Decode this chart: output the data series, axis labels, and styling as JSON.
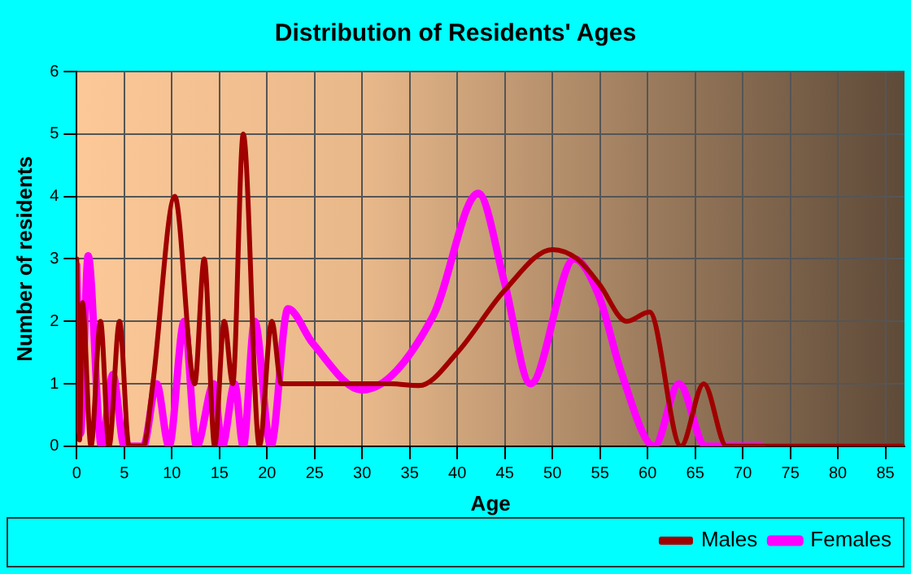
{
  "chart_data": {
    "type": "line",
    "title": "Distribution of Residents' Ages",
    "xlabel": "Age",
    "ylabel": "Number of residents",
    "xlim": [
      0,
      87
    ],
    "xticks": [
      0,
      5,
      10,
      15,
      20,
      25,
      30,
      35,
      40,
      45,
      50,
      55,
      60,
      65,
      70,
      75,
      80,
      85
    ],
    "ylim": [
      0,
      6
    ],
    "yticks": [
      0,
      1,
      2,
      3,
      4,
      5,
      6
    ],
    "grid": true,
    "legend": "bottom right",
    "marker": "none",
    "line_style": "solid",
    "series": [
      {
        "name": "Males",
        "color": "#a00000",
        "x": [
          0,
          0.3,
          0.6,
          1.5,
          2.5,
          3.4,
          4.5,
          5.5,
          7,
          8,
          10.3,
          12.4,
          13.4,
          14.5,
          15.5,
          16.4,
          17.5,
          19.2,
          20.5,
          21.5,
          23,
          30,
          33,
          36,
          40,
          45,
          50,
          52.6,
          54.9,
          57.8,
          60.2,
          63.5,
          65.9,
          68.3,
          75,
          87
        ],
        "values": [
          3,
          0.1,
          2.3,
          0,
          2,
          0,
          2,
          0,
          0,
          1,
          4,
          1,
          3,
          0,
          2,
          1,
          5,
          0,
          2,
          1,
          1,
          1,
          1,
          0.97,
          1.5,
          2.5,
          3.15,
          3,
          2.6,
          2,
          2.15,
          0,
          1,
          0,
          0,
          0
        ]
      },
      {
        "name": "Females",
        "color": "#ff00ff",
        "x": [
          0,
          0.4,
          1.2,
          2.6,
          3.8,
          5,
          7,
          8.4,
          9.7,
          11.3,
          12.6,
          14.4,
          15.3,
          16.6,
          17.5,
          18.7,
          20.4,
          22.2,
          24.8,
          30,
          37.5,
          42.2,
          45,
          47.7,
          52.3,
          54.9,
          57.2,
          60.7,
          63.3,
          66.1,
          72
        ],
        "values": [
          2.9,
          0.2,
          3.05,
          0,
          1.15,
          0,
          0,
          1,
          0,
          2,
          0,
          1,
          0,
          1,
          0,
          2,
          0,
          2.2,
          1.65,
          0.9,
          2.1,
          4.05,
          2.6,
          1,
          3,
          2.4,
          1.2,
          0,
          1,
          0,
          0
        ]
      }
    ]
  }
}
